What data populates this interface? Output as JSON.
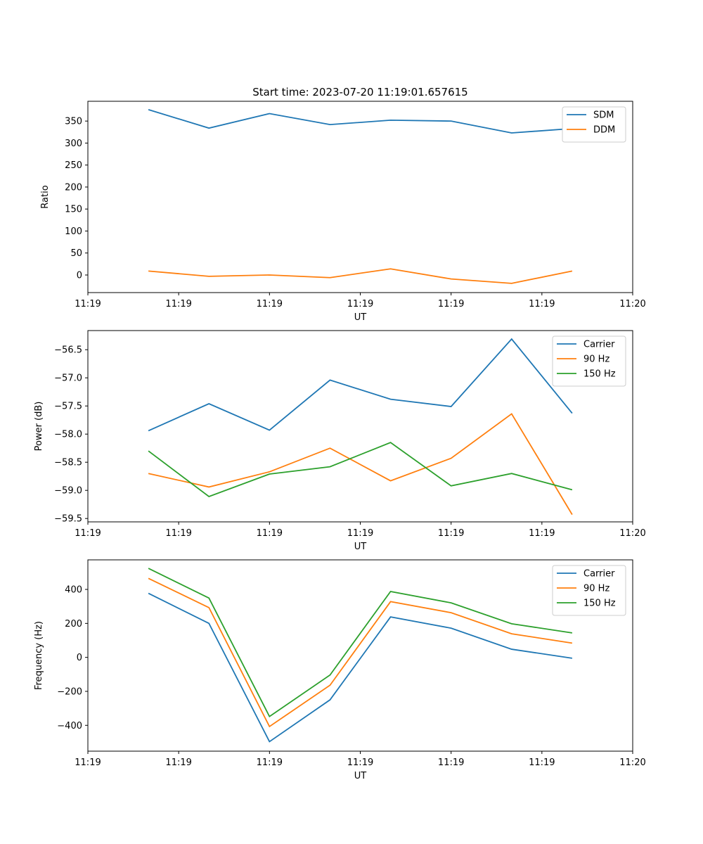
{
  "figure_title": "Start time: 2023-07-20 11:19:01.657615",
  "chart_data": [
    {
      "type": "line",
      "title": "Start time: 2023-07-20 11:19:01.657615",
      "xlabel": "UT",
      "ylabel": "Ratio",
      "x": [
        1,
        2,
        3,
        4,
        5,
        6,
        7,
        8
      ],
      "xlim": [
        0,
        9
      ],
      "x_ticks": [
        {
          "value": 0,
          "label": "11:19"
        },
        {
          "value": 1.5,
          "label": "11:19"
        },
        {
          "value": 3,
          "label": "11:19"
        },
        {
          "value": 4.5,
          "label": "11:19"
        },
        {
          "value": 6,
          "label": "11:19"
        },
        {
          "value": 7.5,
          "label": "11:19"
        },
        {
          "value": 9,
          "label": "11:20"
        }
      ],
      "ylim": [
        -40,
        395
      ],
      "y_ticks": [
        0,
        50,
        100,
        150,
        200,
        250,
        300,
        350
      ],
      "legend_position": "top-right",
      "series": [
        {
          "name": "SDM",
          "color": "#1f77b4",
          "values": [
            376,
            334,
            367,
            342,
            352,
            350,
            323,
            333
          ]
        },
        {
          "name": "DDM",
          "color": "#ff7f0e",
          "values": [
            9,
            -3,
            0,
            -6,
            14,
            -9,
            -19,
            9
          ]
        }
      ]
    },
    {
      "type": "line",
      "title": "",
      "xlabel": "UT",
      "ylabel": "Power (dB)",
      "x": [
        1,
        2,
        3,
        4,
        5,
        6,
        7,
        8
      ],
      "xlim": [
        0,
        9
      ],
      "x_ticks": [
        {
          "value": 0,
          "label": "11:19"
        },
        {
          "value": 1.5,
          "label": "11:19"
        },
        {
          "value": 3,
          "label": "11:19"
        },
        {
          "value": 4.5,
          "label": "11:19"
        },
        {
          "value": 6,
          "label": "11:19"
        },
        {
          "value": 7.5,
          "label": "11:19"
        },
        {
          "value": 9,
          "label": "11:20"
        }
      ],
      "ylim": [
        -59.56,
        -56.16
      ],
      "y_ticks": [
        -59.5,
        -59.0,
        -58.5,
        -58.0,
        -57.5,
        -57.0,
        -56.5
      ],
      "y_tick_labels": [
        "−59.5",
        "−59.0",
        "−58.5",
        "−58.0",
        "−57.5",
        "−57.0",
        "−56.5"
      ],
      "legend_position": "top-right",
      "series": [
        {
          "name": "Carrier",
          "color": "#1f77b4",
          "values": [
            -57.94,
            -57.46,
            -57.93,
            -57.04,
            -57.38,
            -57.51,
            -56.31,
            -57.63
          ]
        },
        {
          "name": "90 Hz",
          "color": "#ff7f0e",
          "values": [
            -58.7,
            -58.94,
            -58.67,
            -58.25,
            -58.83,
            -58.43,
            -57.64,
            -59.43
          ]
        },
        {
          "name": "150 Hz",
          "color": "#2ca02c",
          "values": [
            -58.3,
            -59.11,
            -58.71,
            -58.58,
            -58.15,
            -58.92,
            -58.7,
            -58.99
          ]
        }
      ]
    },
    {
      "type": "line",
      "title": "",
      "xlabel": "UT",
      "ylabel": "Frequency (Hz)",
      "x": [
        1,
        2,
        3,
        4,
        5,
        6,
        7,
        8
      ],
      "xlim": [
        0,
        9
      ],
      "x_ticks": [
        {
          "value": 0,
          "label": "11:19"
        },
        {
          "value": 1.5,
          "label": "11:19"
        },
        {
          "value": 3,
          "label": "11:19"
        },
        {
          "value": 4.5,
          "label": "11:19"
        },
        {
          "value": 6,
          "label": "11:19"
        },
        {
          "value": 7.5,
          "label": "11:19"
        },
        {
          "value": 9,
          "label": "11:20"
        }
      ],
      "ylim": [
        -552,
        574
      ],
      "y_ticks": [
        -400,
        -200,
        0,
        200,
        400
      ],
      "y_tick_labels": [
        "−400",
        "−200",
        "0",
        "200",
        "400"
      ],
      "legend_position": "top-right",
      "series": [
        {
          "name": "Carrier",
          "color": "#1f77b4",
          "values": [
            377,
            200,
            -496,
            -250,
            238,
            172,
            48,
            -5
          ]
        },
        {
          "name": "90 Hz",
          "color": "#ff7f0e",
          "values": [
            465,
            293,
            -407,
            -164,
            328,
            263,
            139,
            84
          ]
        },
        {
          "name": "150 Hz",
          "color": "#2ca02c",
          "values": [
            524,
            349,
            -348,
            -104,
            388,
            321,
            198,
            144
          ]
        }
      ]
    }
  ]
}
